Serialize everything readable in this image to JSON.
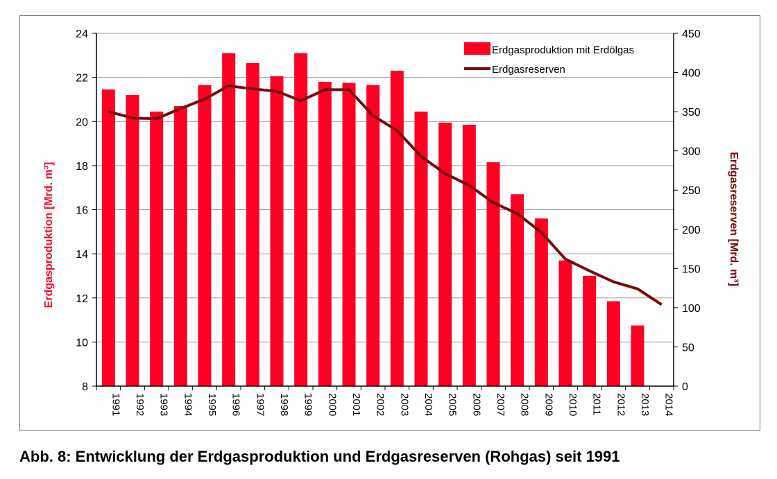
{
  "caption": "Abb. 8: Entwicklung der Erdgasproduktion und Erdgasreserven (Rohgas) seit 1991",
  "colors": {
    "bars": "#ff0022",
    "line": "#7a0a0a",
    "left_axis_label": "#ff0022",
    "right_axis_label": "#7a0a0a",
    "grid": "#9a9a9a"
  },
  "chart_data": {
    "type": "bar",
    "categories": [
      "1991",
      "1992",
      "1993",
      "1994",
      "1995",
      "1996",
      "1997",
      "1998",
      "1999",
      "2000",
      "2001",
      "2002",
      "2003",
      "2004",
      "2005",
      "2006",
      "2007",
      "2008",
      "2009",
      "2010",
      "2011",
      "2012",
      "2013",
      "2014"
    ],
    "series": [
      {
        "name": "Erdgasproduktion mit Erdölgas",
        "type": "bar",
        "axis": "left",
        "values": [
          21.45,
          21.2,
          20.45,
          20.7,
          21.65,
          23.1,
          22.65,
          22.05,
          23.1,
          21.8,
          21.75,
          21.65,
          22.3,
          20.45,
          19.95,
          19.85,
          18.15,
          16.7,
          15.6,
          13.7,
          13.0,
          11.85,
          10.75,
          null
        ]
      },
      {
        "name": "Erdgasreserven",
        "type": "line",
        "axis": "right",
        "values": [
          350,
          342,
          341,
          354,
          366,
          383,
          379,
          376,
          364,
          378,
          378,
          345,
          326,
          293,
          271,
          256,
          234,
          220,
          196,
          162,
          147,
          133,
          124,
          104
        ]
      }
    ],
    "ylabel": "Erdgasproduktion [Mrd. m³]",
    "y2label": "Erdgasreserven [Mrd. m³]",
    "ylim": [
      8,
      24
    ],
    "y2lim": [
      0,
      450
    ],
    "yticks": [
      "8",
      "10",
      "12",
      "14",
      "16",
      "18",
      "20",
      "22",
      "24"
    ],
    "y2ticks": [
      "0",
      "50",
      "100",
      "150",
      "200",
      "250",
      "300",
      "350",
      "400",
      "450"
    ],
    "grid": true,
    "legend": "top-right"
  }
}
